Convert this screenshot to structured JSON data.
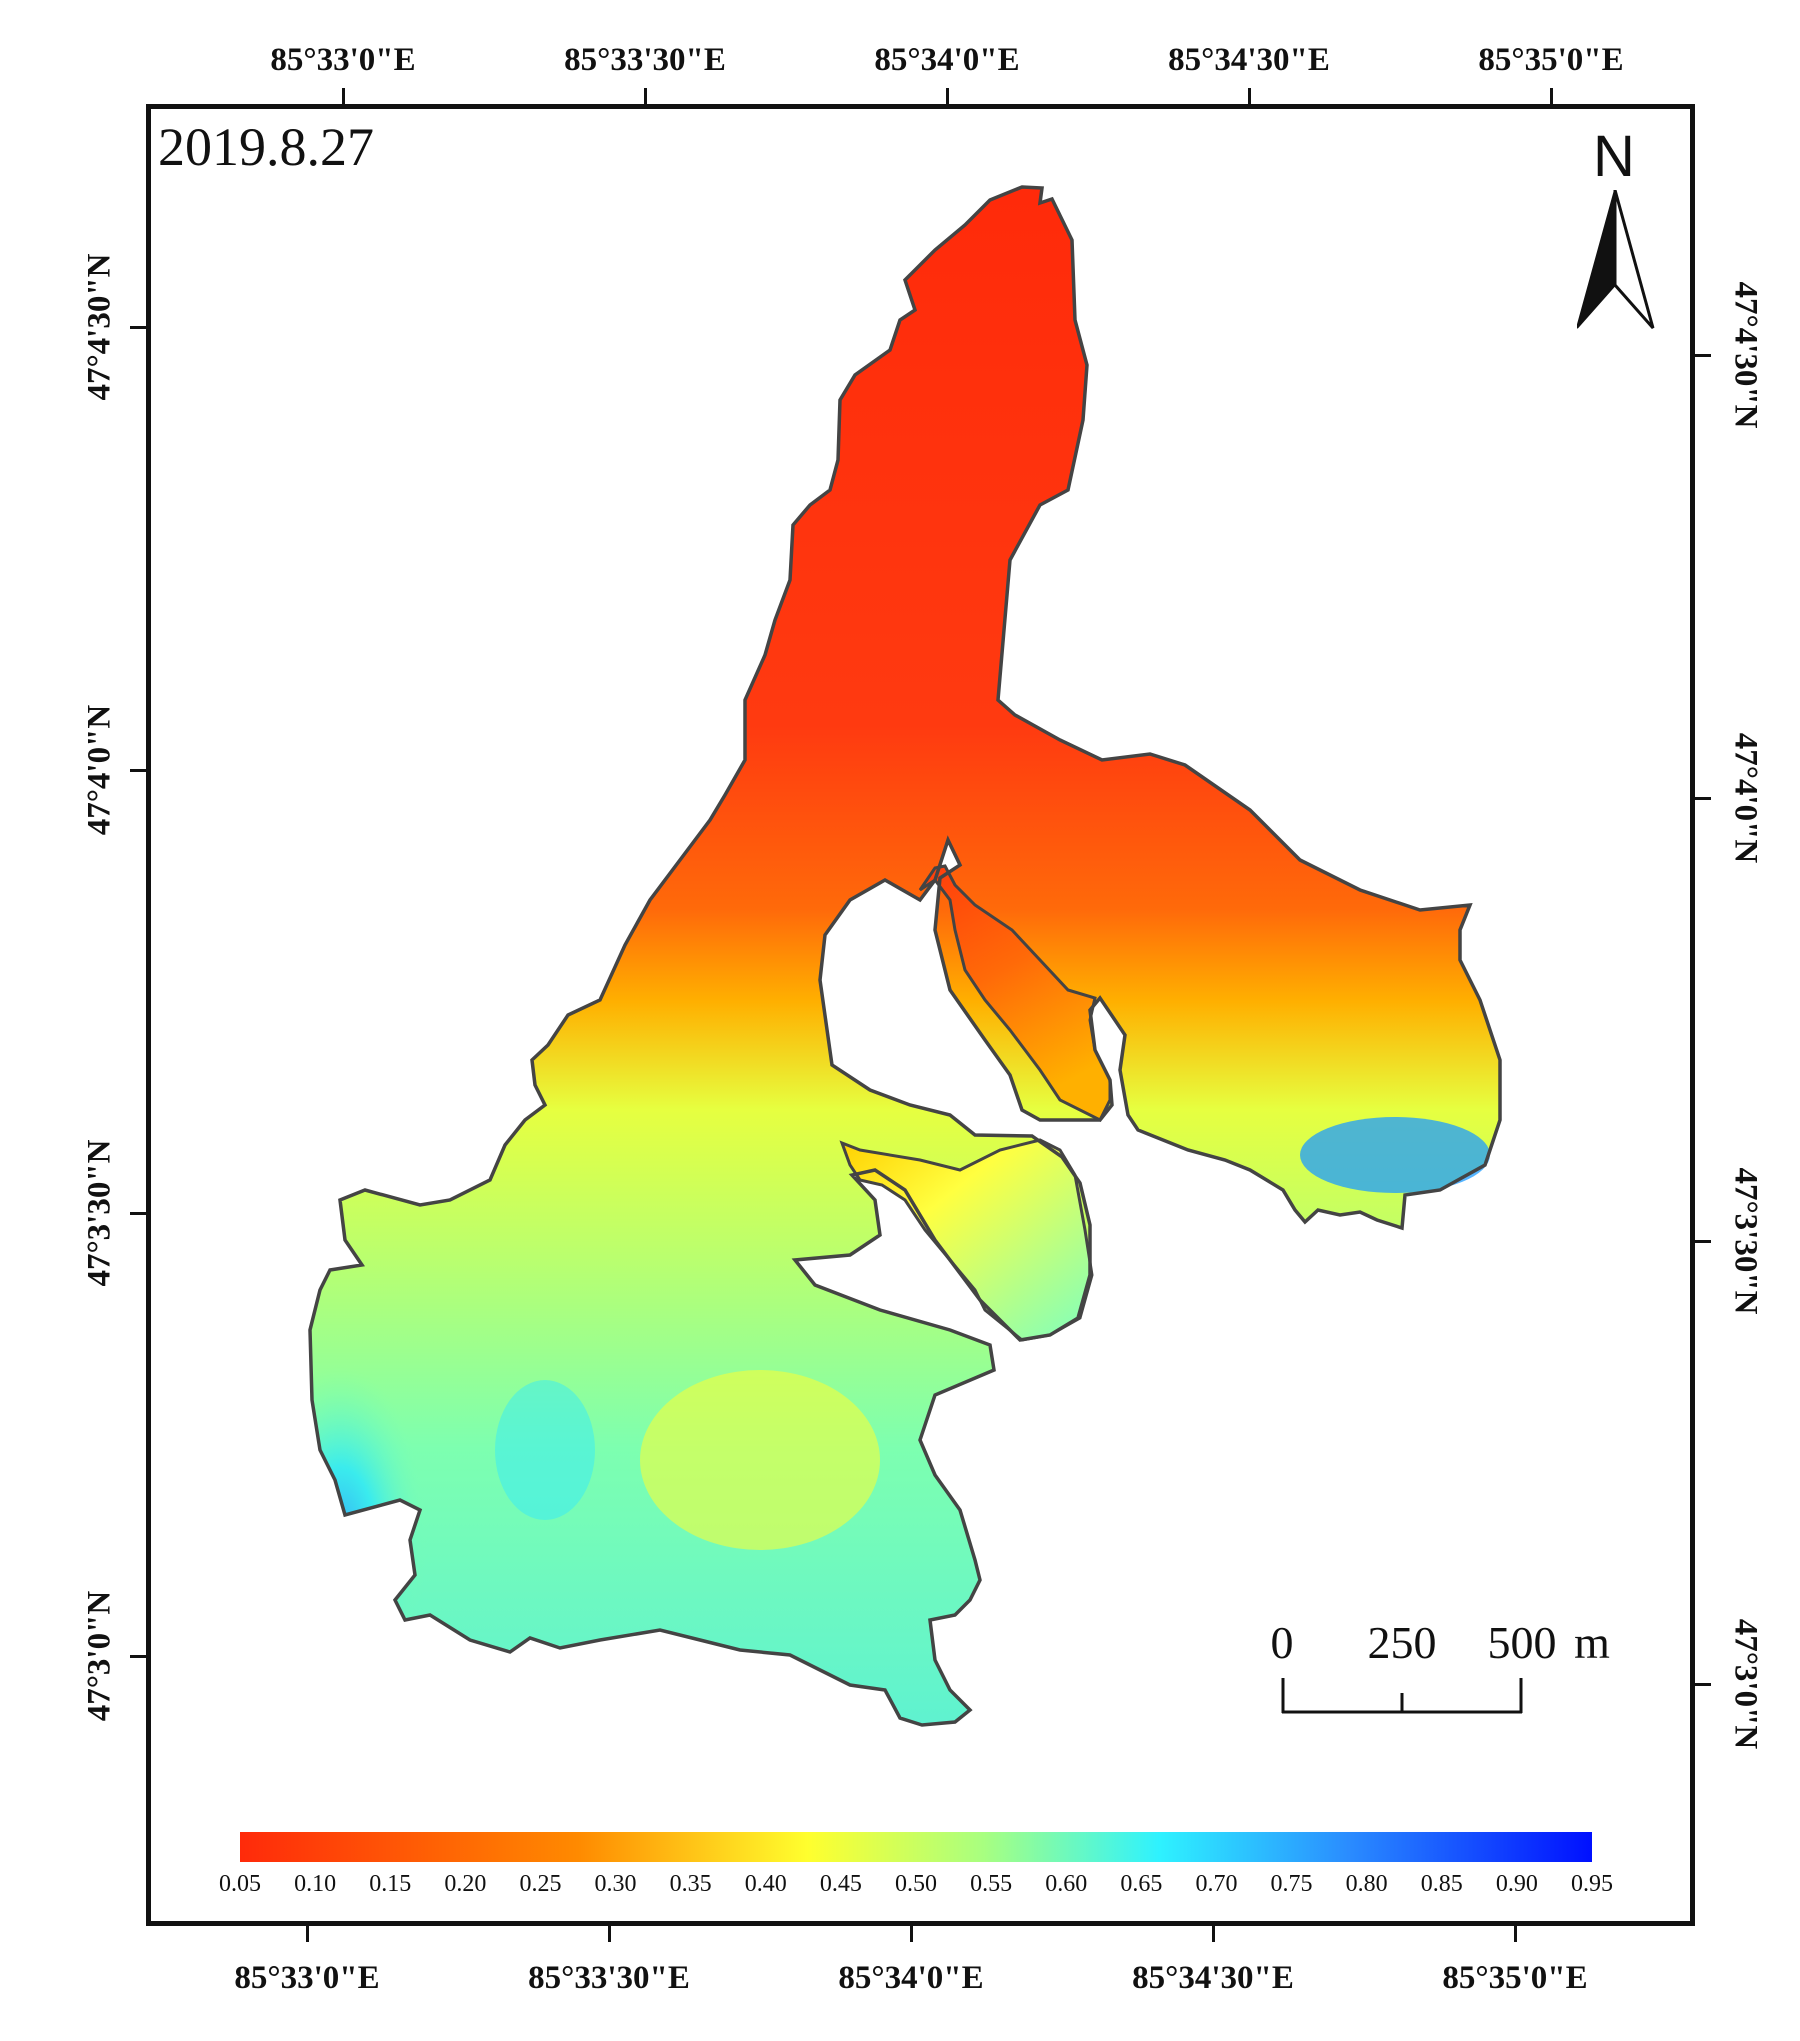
{
  "date": "2019.8.27",
  "north_label": "N",
  "longitude_labels": [
    "85°33'0\"E",
    "85°33'30\"E",
    "85°34'0\"E",
    "85°34'30\"E",
    "85°35'0\"E"
  ],
  "latitude_labels_left": [
    "47°4'30\"N",
    "47°4'0\"N",
    "47°3'30\"N",
    "47°3'0\"N"
  ],
  "latitude_labels_right": [
    "47°4'30\"N",
    "47°4'0\"N",
    "47°3'30\"N",
    "47°3'0\"N"
  ],
  "scale_bar": {
    "labels": [
      "0",
      "250",
      "500"
    ],
    "unit": "m"
  },
  "legend": {
    "colors": [
      "#ff2a0a",
      "#ff8a00",
      "#ffff2e",
      "#2ef2ff",
      "#0010ff"
    ],
    "tick_labels": [
      "0.05",
      "0.10",
      "0.15",
      "0.20",
      "0.25",
      "0.30",
      "0.35",
      "0.40",
      "0.45",
      "0.50",
      "0.55",
      "0.60",
      "0.65",
      "0.70",
      "0.75",
      "0.80",
      "0.85",
      "0.90",
      "0.95"
    ],
    "min": 0.05,
    "max": 0.95
  }
}
